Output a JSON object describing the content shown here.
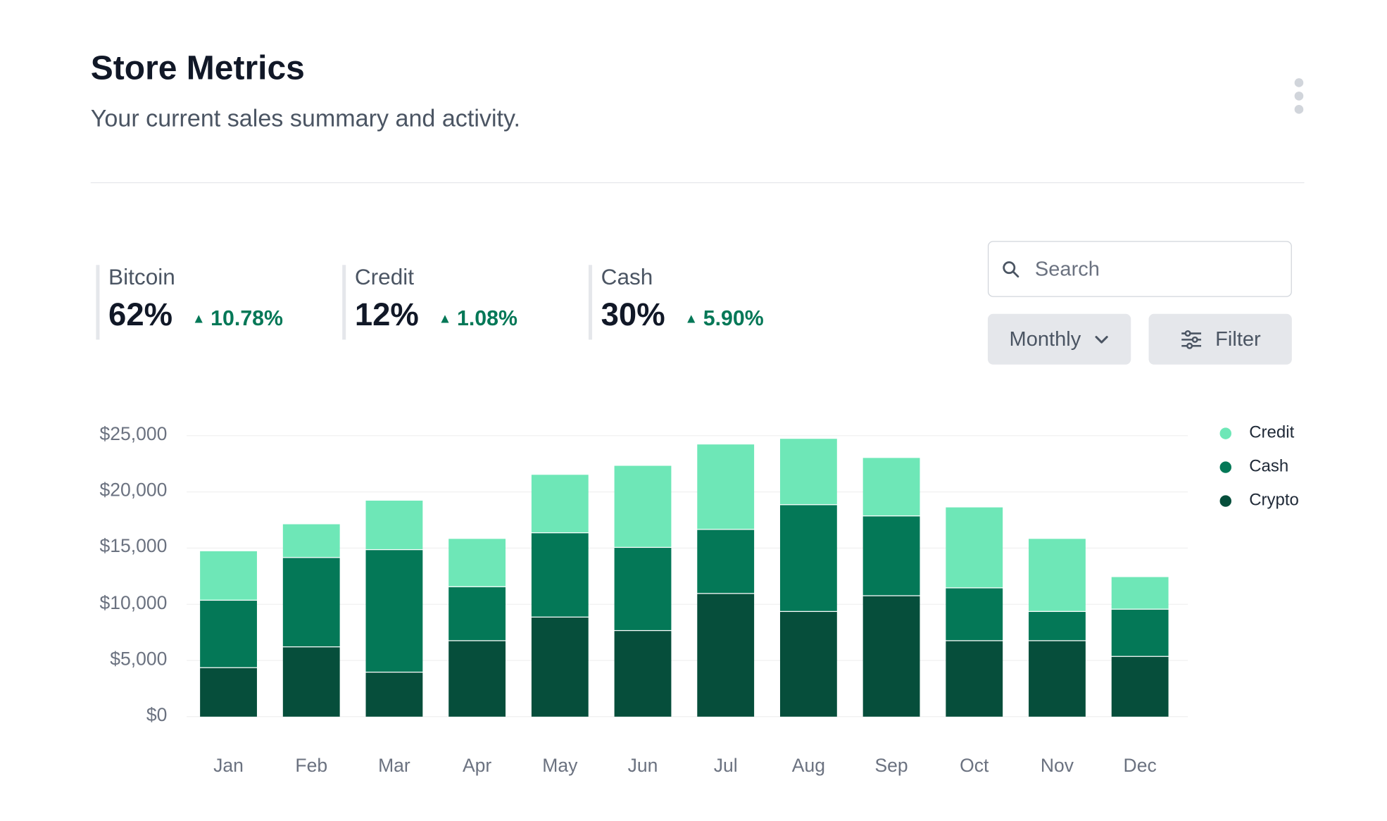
{
  "header": {
    "title": "Store Metrics",
    "subtitle": "Your current sales summary and activity."
  },
  "stats": [
    {
      "label": "Bitcoin",
      "value": "62%",
      "change": "10.78%"
    },
    {
      "label": "Credit",
      "value": "12%",
      "change": "1.08%"
    },
    {
      "label": "Cash",
      "value": "30%",
      "change": "5.90%"
    }
  ],
  "controls": {
    "search_placeholder": "Search",
    "period": "Monthly",
    "filter_label": "Filter"
  },
  "colors": {
    "credit": "#6ee7b7",
    "cash": "#047857",
    "crypto": "#064e3b",
    "positive": "#047857"
  },
  "chart_data": {
    "type": "bar",
    "stacked": true,
    "categories": [
      "Jan",
      "Feb",
      "Mar",
      "Apr",
      "May",
      "Jun",
      "Jul",
      "Aug",
      "Sep",
      "Oct",
      "Nov",
      "Dec"
    ],
    "series": [
      {
        "name": "Crypto",
        "color": "#064e3b",
        "values": [
          4400,
          6250,
          4000,
          6800,
          8900,
          7700,
          11000,
          9400,
          10800,
          6800,
          6800,
          5400
        ]
      },
      {
        "name": "Cash",
        "color": "#047857",
        "values": [
          6000,
          7950,
          10900,
          4800,
          7500,
          7400,
          5700,
          9500,
          7100,
          4700,
          2600,
          4200
        ]
      },
      {
        "name": "Credit",
        "color": "#6ee7b7",
        "values": [
          4400,
          3000,
          4400,
          4300,
          5200,
          7300,
          7600,
          5900,
          5200,
          7200,
          6500,
          2900
        ]
      }
    ],
    "legend": [
      "Credit",
      "Cash",
      "Crypto"
    ],
    "legend_position": "right",
    "yticks": [
      "$0",
      "$5,000",
      "$10,000",
      "$15,000",
      "$20,000",
      "$25,000"
    ],
    "ylim": [
      0,
      25000
    ],
    "grid": true,
    "title": "",
    "xlabel": "",
    "ylabel": ""
  }
}
